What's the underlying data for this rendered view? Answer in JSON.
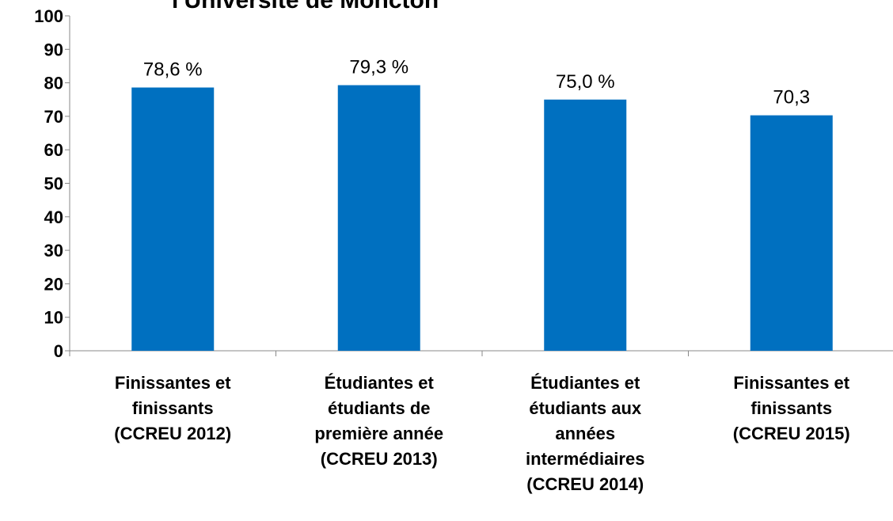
{
  "chart_data": {
    "type": "bar",
    "title": "l'Université de Moncton",
    "categories": [
      "Finissantes et\nfinissants\n(CCREU 2012)",
      "Étudiantes et\nétudiants de\npremière année\n(CCREU 2013)",
      "Étudiantes et\nétudiants aux\nannées\nintermédiaires\n(CCREU 2014)",
      "Finissantes et\nfinissants\n(CCREU 2015)"
    ],
    "values": [
      78.6,
      79.3,
      75.0,
      70.3
    ],
    "value_labels": [
      "78,6 %",
      "79,3 %",
      "75,0 %",
      "70,3"
    ],
    "color": "#0070c0",
    "ylim": [
      0,
      100
    ],
    "yticks": [
      0,
      10,
      20,
      30,
      40,
      50,
      60,
      70,
      80,
      90,
      100
    ],
    "grid": false
  }
}
